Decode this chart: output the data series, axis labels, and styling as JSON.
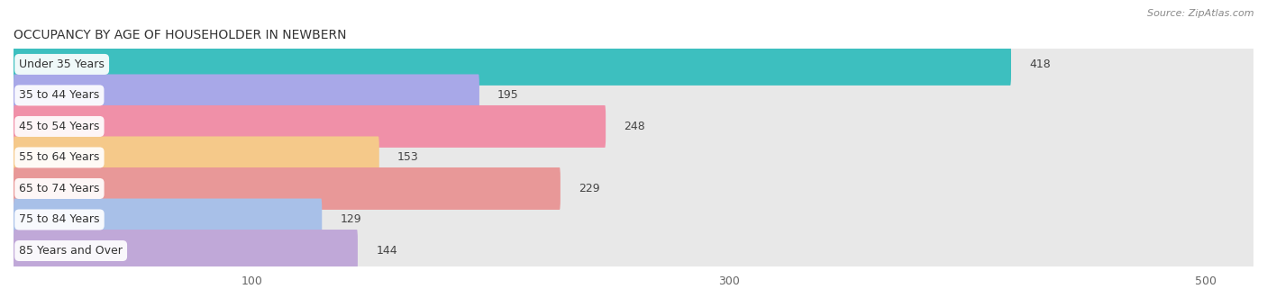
{
  "title": "OCCUPANCY BY AGE OF HOUSEHOLDER IN NEWBERN",
  "source": "Source: ZipAtlas.com",
  "categories": [
    "Under 35 Years",
    "35 to 44 Years",
    "45 to 54 Years",
    "55 to 64 Years",
    "65 to 74 Years",
    "75 to 84 Years",
    "85 Years and Over"
  ],
  "values": [
    418,
    195,
    248,
    153,
    229,
    129,
    144
  ],
  "bar_colors": [
    "#3dbfbf",
    "#a8a8e8",
    "#f090a8",
    "#f5c98a",
    "#e89898",
    "#a8c0e8",
    "#c0a8d8"
  ],
  "bar_bg_color": "#e8e8e8",
  "xlim_data": [
    0,
    520
  ],
  "xlim_display": [
    0,
    520
  ],
  "xticks": [
    100,
    300,
    500
  ],
  "figsize": [
    14.06,
    3.41
  ],
  "dpi": 100,
  "title_fontsize": 10,
  "label_fontsize": 9,
  "value_fontsize": 9,
  "source_fontsize": 8,
  "bar_height": 0.68,
  "background_color": "#ffffff",
  "row_bg_colors": [
    "#f2f2f2",
    "#fafafa"
  ],
  "grid_color": "#cccccc"
}
